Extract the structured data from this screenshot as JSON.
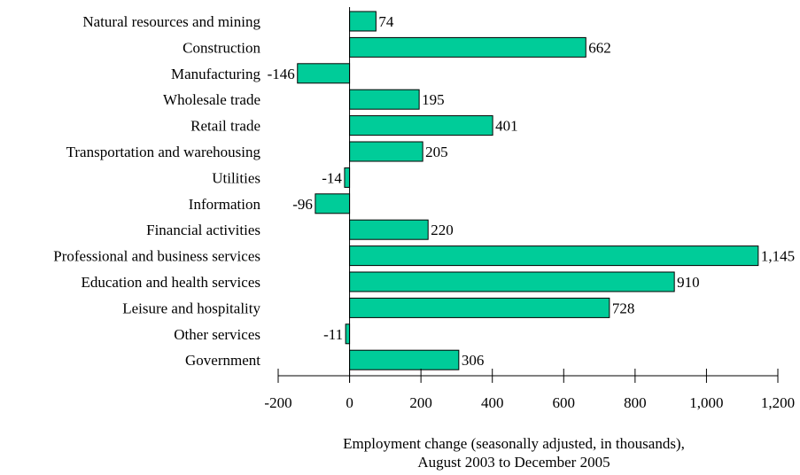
{
  "chart_data": {
    "type": "bar",
    "orientation": "horizontal",
    "categories": [
      "Natural resources and mining",
      "Construction",
      "Manufacturing",
      "Wholesale trade",
      "Retail trade",
      "Transportation and warehousing",
      "Utilities",
      "Information",
      "Financial activities",
      "Professional and business services",
      "Education and health services",
      "Leisure and hospitality",
      "Other services",
      "Government"
    ],
    "values": [
      74,
      662,
      -146,
      195,
      401,
      205,
      -14,
      -96,
      220,
      1145,
      910,
      728,
      -11,
      306
    ],
    "value_labels": [
      "74",
      "662",
      "-146",
      "195",
      "401",
      "205",
      "-14",
      "-96",
      "220",
      "1,145",
      "910",
      "728",
      "-11",
      "306"
    ],
    "xlim": [
      -200,
      1200
    ],
    "xticks": [
      -200,
      0,
      200,
      400,
      600,
      800,
      1000,
      1200
    ],
    "xtick_labels": [
      "-200",
      "0",
      "200",
      "400",
      "600",
      "800",
      "1,000",
      "1,200"
    ],
    "xlabel_lines": [
      "Employment change (seasonally adjusted, in thousands),",
      "August 2003 to December 2005"
    ],
    "grid": false,
    "legend": "none",
    "bar_color": "#00CC99",
    "bar_edge_color": "#000000"
  }
}
